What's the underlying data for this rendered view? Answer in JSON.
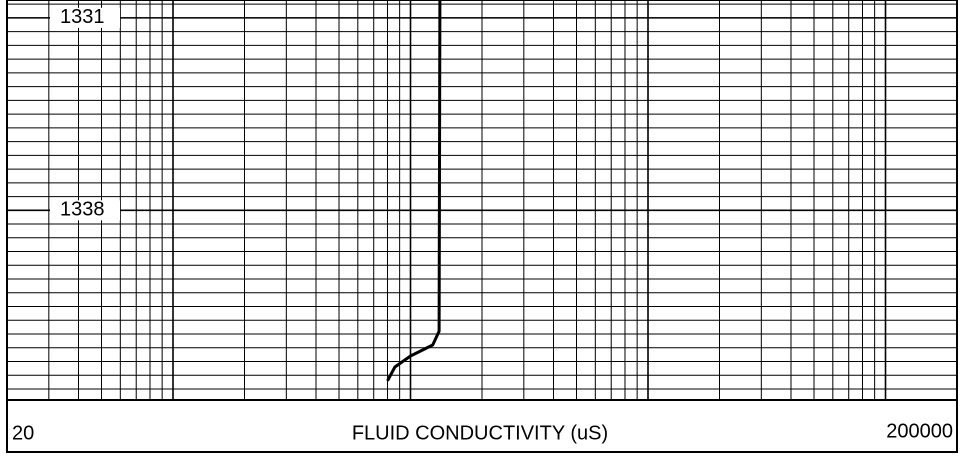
{
  "chart_data": {
    "type": "line",
    "x_label": "FLUID CONDUCTIVITY (uS)",
    "log_x": true,
    "xlim": [
      20,
      200000
    ],
    "ylim": [
      1330.35,
      1344.9
    ],
    "yticks": [
      1331,
      1338
    ],
    "minor_grid_step": 0.5,
    "grid": true,
    "series": [
      {
        "color": "#000000",
        "x": [
          1330.35,
          1342.4,
          1342.9,
          1343.3,
          1343.7,
          1344.2
        ],
        "values": [
          1330,
          1320,
          1240,
          1000,
          860,
          800
        ]
      }
    ]
  }
}
